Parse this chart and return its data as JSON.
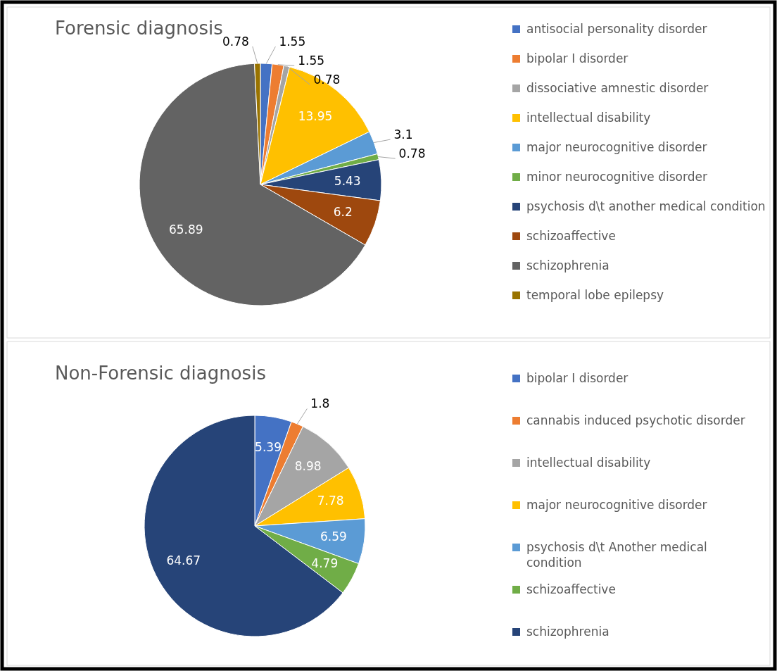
{
  "chart_data": [
    {
      "type": "pie",
      "title": "Forensic diagnosis",
      "categories": [
        "antisocial personality disorder",
        "bipolar I disorder",
        "dissociative amnestic disorder",
        "intellectual disability",
        "major neurocognitive disorder",
        "minor neurocognitive disorder",
        "psychosis d\\t another medical condition",
        "schizoaffective",
        "schizophrenia",
        "temporal lobe epilepsy"
      ],
      "values": [
        1.55,
        1.55,
        0.78,
        13.95,
        3.1,
        0.78,
        5.43,
        6.2,
        65.89,
        0.78
      ],
      "colors": [
        "#4472c4",
        "#ed7d31",
        "#a5a5a5",
        "#ffc000",
        "#5b9bd5",
        "#70ad47",
        "#264478",
        "#9e480e",
        "#636363",
        "#997300"
      ],
      "data_labels": true,
      "legend": "right"
    },
    {
      "type": "pie",
      "title": "Non-Forensic diagnosis",
      "categories": [
        "bipolar I disorder",
        "cannabis induced psychotic disorder",
        "intellectual disability",
        "major neurocognitive disorder",
        "psychosis d\\t Another medical condition",
        "schizoaffective",
        "schizophrenia"
      ],
      "values": [
        5.39,
        1.8,
        8.98,
        7.78,
        6.59,
        4.79,
        64.67
      ],
      "colors": [
        "#4472c4",
        "#ed7d31",
        "#a5a5a5",
        "#ffc000",
        "#5b9bd5",
        "#70ad47",
        "#264478"
      ],
      "data_labels": true,
      "legend": "right"
    }
  ]
}
